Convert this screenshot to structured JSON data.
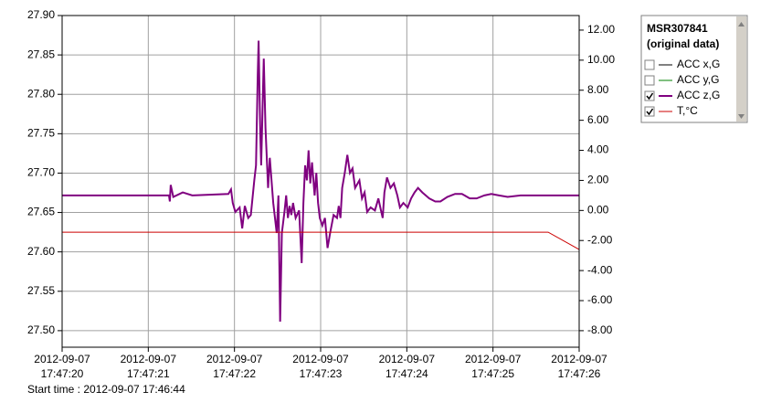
{
  "chart_data": {
    "type": "line",
    "xlim": [
      "2012-09-07 17:47:20",
      "2012-09-07 17:47:26"
    ],
    "xticks": [
      "2012-09-07 17:47:20",
      "2012-09-07 17:47:21",
      "2012-09-07 17:47:22",
      "2012-09-07 17:47:23",
      "2012-09-07 17:47:24",
      "2012-09-07 17:47:25",
      "2012-09-07 17:47:26"
    ],
    "ylim": [
      27.479,
      27.9
    ],
    "yticks": [
      {
        "value": 27.5,
        "label": "27.50"
      },
      {
        "value": 27.55,
        "label": "27.55"
      },
      {
        "value": 27.6,
        "label": "27.60"
      },
      {
        "value": 27.65,
        "label": "27.65"
      },
      {
        "value": 27.7,
        "label": "27.70"
      },
      {
        "value": 27.75,
        "label": "27.75"
      },
      {
        "value": 27.8,
        "label": "27.80"
      },
      {
        "value": 27.85,
        "label": "27.85"
      },
      {
        "value": 27.9,
        "label": "27.90"
      }
    ],
    "y2lim": [
      -9.1,
      12.97
    ],
    "y2ticks": [
      {
        "value": -8,
        "label": "-8.00"
      },
      {
        "value": -6,
        "label": "-6.00"
      },
      {
        "value": -4,
        "label": "-4.00"
      },
      {
        "value": -2,
        "label": "-2.00"
      },
      {
        "value": 0,
        "label": "0.00"
      },
      {
        "value": 2,
        "label": "2.00"
      },
      {
        "value": 4,
        "label": "4.00"
      },
      {
        "value": 6,
        "label": "6.00"
      },
      {
        "value": 8,
        "label": "8.00"
      },
      {
        "value": 10,
        "label": "10.00"
      },
      {
        "value": 12,
        "label": "12.00"
      }
    ],
    "grid": true,
    "legend_title": [
      "MSR307841",
      "(original data)"
    ],
    "footer": "Start time : 2012-09-07 17:46:44",
    "series": [
      {
        "name": "ACC x,G",
        "color": "#000000",
        "checked": false
      },
      {
        "name": "ACC y,G",
        "color": "#008000",
        "checked": false
      },
      {
        "name": "ACC z,G",
        "color": "#800080",
        "checked": true,
        "axis": "y2",
        "x": [
          "17:47:20.00",
          "17:47:21.24",
          "17:47:21.25",
          "17:47:21.26",
          "17:47:21.29",
          "17:47:21.40",
          "17:47:21.51",
          "17:47:21.93",
          "17:47:21.96",
          "17:47:21.98",
          "17:47:22.01",
          "17:47:22.06",
          "17:47:22.09",
          "17:47:22.12",
          "17:47:22.16",
          "17:47:22.19",
          "17:47:22.23",
          "17:47:22.25",
          "17:47:22.27",
          "17:47:22.28",
          "17:47:22.30",
          "17:47:22.31",
          "17:47:22.34",
          "17:47:22.36",
          "17:47:22.39",
          "17:47:22.41",
          "17:47:22.43",
          "17:47:22.45",
          "17:47:22.47",
          "17:47:22.49",
          "17:47:22.51",
          "17:47:22.53",
          "17:47:22.55",
          "17:47:22.58",
          "17:47:22.60",
          "17:47:22.62",
          "17:47:22.64",
          "17:47:22.66",
          "17:47:22.68",
          "17:47:22.71",
          "17:47:22.75",
          "17:47:22.78",
          "17:47:22.80",
          "17:47:22.82",
          "17:47:22.84",
          "17:47:22.86",
          "17:47:22.88",
          "17:47:22.90",
          "17:47:22.93",
          "17:47:22.95",
          "17:47:22.97",
          "17:47:22.99",
          "17:47:23.02",
          "17:47:23.05",
          "17:47:23.08",
          "17:47:23.11",
          "17:47:23.15",
          "17:47:23.19",
          "17:47:23.21",
          "17:47:23.23",
          "17:47:23.25",
          "17:47:23.28",
          "17:47:23.31",
          "17:47:23.34",
          "17:47:23.37",
          "17:47:23.40",
          "17:47:23.45",
          "17:47:23.48",
          "17:47:23.51",
          "17:47:23.54",
          "17:47:23.58",
          "17:47:23.63",
          "17:47:23.67",
          "17:47:23.70",
          "17:47:23.72",
          "17:47:23.74",
          "17:47:23.77",
          "17:47:23.81",
          "17:47:23.85",
          "17:47:23.89",
          "17:47:23.92",
          "17:47:23.96",
          "17:47:24.01",
          "17:47:24.05",
          "17:47:24.09",
          "17:47:24.13",
          "17:47:24.18",
          "17:47:24.22",
          "17:47:24.26",
          "17:47:24.33",
          "17:47:24.39",
          "17:47:24.47",
          "17:47:24.56",
          "17:47:24.64",
          "17:47:24.73",
          "17:47:24.81",
          "17:47:24.90",
          "17:47:24.98",
          "17:47:25.07",
          "17:47:25.17",
          "17:47:25.32",
          "17:47:25.64",
          "17:47:26.00"
        ],
        "values": [
          1.0,
          1.0,
          0.6,
          1.7,
          0.9,
          1.2,
          1.0,
          1.1,
          1.4,
          0.5,
          -0.1,
          0.2,
          -1.2,
          0.3,
          -0.5,
          -0.3,
          2.0,
          3.0,
          9.0,
          11.3,
          5.0,
          3.0,
          10.1,
          5.5,
          1.5,
          3.5,
          2.0,
          0.5,
          -0.5,
          -1.5,
          1.0,
          -7.4,
          -1.5,
          -0.1,
          1.0,
          -0.5,
          0.3,
          -0.3,
          0.5,
          -0.5,
          0.0,
          -3.5,
          0.5,
          3.0,
          2.0,
          4.0,
          1.8,
          3.2,
          1.0,
          2.5,
          0.5,
          -0.5,
          -1.0,
          -0.5,
          -2.5,
          -1.5,
          -0.3,
          -0.5,
          0.3,
          -0.5,
          1.5,
          2.5,
          3.7,
          2.5,
          2.8,
          1.5,
          2.0,
          0.8,
          1.2,
          -0.1,
          0.2,
          0.0,
          0.8,
          0.0,
          -0.5,
          1.2,
          2.2,
          1.5,
          1.8,
          1.0,
          0.2,
          0.5,
          0.2,
          0.8,
          1.2,
          1.5,
          1.2,
          1.0,
          0.8,
          0.6,
          0.6,
          0.9,
          1.1,
          1.1,
          0.8,
          0.8,
          1.0,
          1.1,
          1.0,
          0.9,
          1.0,
          1.0,
          1.0
        ]
      },
      {
        "name": "T,°C",
        "color": "#cc0000",
        "checked": true,
        "x": [
          "17:47:20.00",
          "17:47:25.64",
          "17:47:26.00"
        ],
        "values": [
          27.625,
          27.625,
          27.603
        ]
      }
    ]
  }
}
